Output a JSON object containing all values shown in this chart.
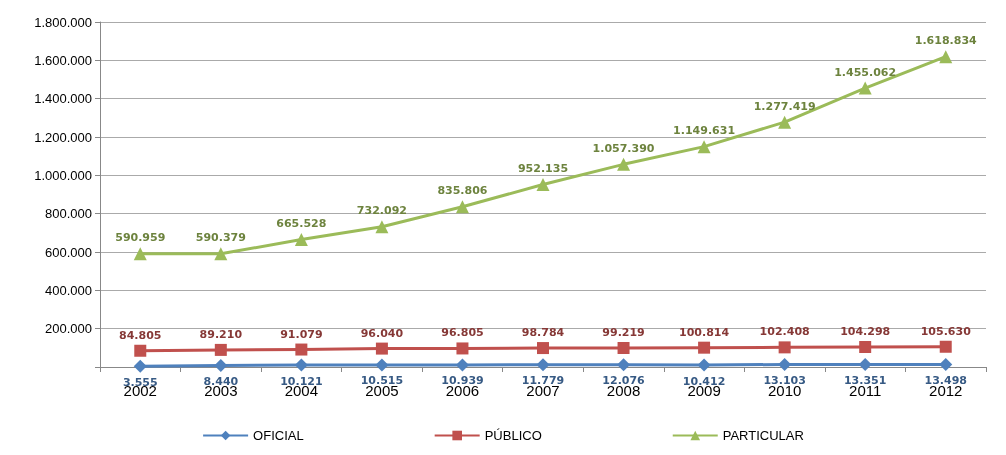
{
  "chart_data": {
    "type": "line",
    "categories": [
      "2002",
      "2003",
      "2004",
      "2005",
      "2006",
      "2007",
      "2008",
      "2009",
      "2010",
      "2011",
      "2012"
    ],
    "series": [
      {
        "name": "OFICIAL",
        "color": "#4f81bd",
        "marker": "diamond",
        "values": [
          3555,
          8440,
          10121,
          10515,
          10939,
          11779,
          12076,
          10412,
          13103,
          13351,
          13498
        ],
        "value_labels": [
          "3.555",
          "8.440",
          "10.121",
          "10.515",
          "10.939",
          "11.779",
          "12.076",
          "10.412",
          "13.103",
          "13.351",
          "13.498"
        ]
      },
      {
        "name": "PÚBLICO",
        "color": "#c0504d",
        "marker": "square",
        "values": [
          84805,
          89210,
          91079,
          96040,
          96805,
          98784,
          99219,
          100814,
          102408,
          104298,
          105630
        ],
        "value_labels": [
          "84.805",
          "89.210",
          "91.079",
          "96.040",
          "96.805",
          "98.784",
          "99.219",
          "100.814",
          "102.408",
          "104.298",
          "105.630"
        ]
      },
      {
        "name": "PARTICULAR",
        "color": "#9bbb59",
        "marker": "triangle",
        "values": [
          590959,
          590379,
          665528,
          732092,
          835806,
          952135,
          1057390,
          1149631,
          1277419,
          1455062,
          1618834
        ],
        "value_labels": [
          "590.959",
          "590.379",
          "665.528",
          "732.092",
          "835.806",
          "952.135",
          "1.057.390",
          "1.149.631",
          "1.277.419",
          "1.455.062",
          "1.618.834"
        ]
      }
    ],
    "ylim": [
      0,
      1800000
    ],
    "yticks": [
      {
        "value": 0,
        "label": null
      },
      {
        "value": 200000,
        "label": "200.000"
      },
      {
        "value": 400000,
        "label": "400.000"
      },
      {
        "value": 600000,
        "label": "600.000"
      },
      {
        "value": 800000,
        "label": "800.000"
      },
      {
        "value": 1000000,
        "label": "1.000.000"
      },
      {
        "value": 1200000,
        "label": "1.200.000"
      },
      {
        "value": 1400000,
        "label": "1.400.000"
      },
      {
        "value": 1600000,
        "label": "1.600.000"
      },
      {
        "value": 1800000,
        "label": "1.800.000"
      }
    ],
    "grid": "y",
    "legend": "bottom"
  }
}
